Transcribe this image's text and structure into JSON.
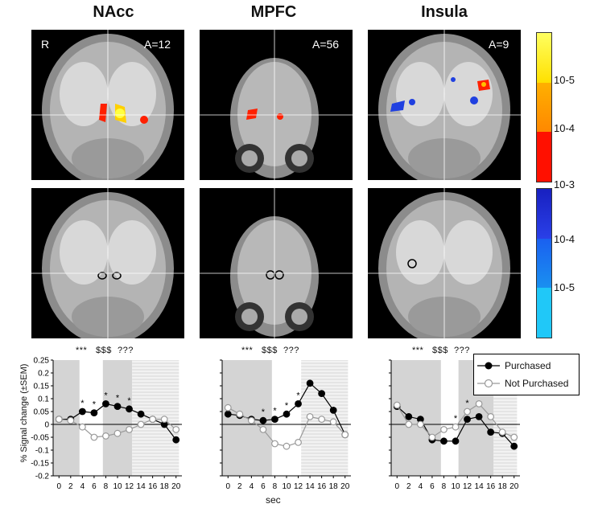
{
  "columns": [
    {
      "title": "NAcc",
      "a_label": "A=12",
      "side_label": "R"
    },
    {
      "title": "MPFC",
      "a_label": "A=56",
      "side_label": ""
    },
    {
      "title": "Insula",
      "a_label": "A=9",
      "side_label": ""
    }
  ],
  "colorbar_warm": {
    "labels": [
      "10-5",
      "10-4",
      "10-3"
    ],
    "colors": [
      "#ffff00",
      "#ff9900",
      "#ff0000"
    ]
  },
  "colorbar_cool": {
    "labels": [
      "10-3",
      "10-4",
      "10-5"
    ],
    "colors": [
      "#1e2bd0",
      "#1a6cf0",
      "#18c0f5"
    ]
  },
  "significance_labels": [
    "***",
    "$$$",
    "???"
  ],
  "ylabel": "% Signal change (±SEM)",
  "xlabel": "sec",
  "legend": {
    "purchased": "Purchased",
    "not_purchased": "Not Purchased"
  },
  "chart_data": [
    {
      "type": "line",
      "title": "NAcc",
      "x": [
        0,
        2,
        4,
        6,
        8,
        10,
        12,
        14,
        16,
        18,
        20
      ],
      "ylim": [
        -0.2,
        0.25
      ],
      "yticks": [
        -0.2,
        -0.15,
        -0.1,
        -0.05,
        0,
        0.05,
        0.1,
        0.15,
        0.2,
        0.25
      ],
      "shaded_ranges": [
        [
          0,
          3.5
        ],
        [
          8.5,
          12.5
        ]
      ],
      "striped_range": [
        12.5,
        20.5
      ],
      "series": [
        {
          "name": "Purchased",
          "values": [
            0.02,
            0.02,
            0.05,
            0.045,
            0.08,
            0.07,
            0.06,
            0.04,
            0.02,
            0.0,
            -0.06
          ]
        },
        {
          "name": "Not Purchased",
          "values": [
            0.02,
            0.015,
            -0.01,
            -0.05,
            -0.045,
            -0.035,
            -0.02,
            0.0,
            0.02,
            0.02,
            -0.02
          ]
        }
      ],
      "stars_x": [
        4,
        6,
        8,
        10,
        12
      ]
    },
    {
      "type": "line",
      "title": "MPFC",
      "x": [
        0,
        2,
        4,
        6,
        8,
        10,
        12,
        14,
        16,
        18,
        20
      ],
      "ylim": [
        -0.2,
        0.25
      ],
      "yticks": [
        -0.2,
        -0.15,
        -0.1,
        -0.05,
        0,
        0.05,
        0.1,
        0.15,
        0.2,
        0.25
      ],
      "shaded_ranges": [
        [
          0,
          7.5
        ]
      ],
      "striped_range": [
        12.5,
        20.5
      ],
      "series": [
        {
          "name": "Purchased",
          "values": [
            0.04,
            0.035,
            0.02,
            0.015,
            0.02,
            0.04,
            0.08,
            0.16,
            0.12,
            0.055,
            -0.04
          ]
        },
        {
          "name": "Not Purchased",
          "values": [
            0.065,
            0.04,
            0.015,
            -0.02,
            -0.075,
            -0.085,
            -0.07,
            0.03,
            0.02,
            0.01,
            -0.04
          ]
        }
      ],
      "stars_x": [
        6,
        8,
        10,
        12
      ]
    },
    {
      "type": "line",
      "title": "Insula",
      "x": [
        0,
        2,
        4,
        6,
        8,
        10,
        12,
        14,
        16,
        18,
        20
      ],
      "ylim": [
        -0.2,
        0.25
      ],
      "yticks": [
        -0.2,
        -0.15,
        -0.1,
        -0.05,
        0,
        0.05,
        0.1,
        0.15,
        0.2,
        0.25
      ],
      "shaded_ranges": [
        [
          0,
          7.5
        ],
        [
          11.5,
          16.5
        ]
      ],
      "striped_range": [
        16.5,
        20.5
      ],
      "series": [
        {
          "name": "Purchased",
          "values": [
            0.07,
            0.03,
            0.02,
            -0.06,
            -0.065,
            -0.065,
            0.02,
            0.03,
            -0.03,
            -0.035,
            -0.085
          ]
        },
        {
          "name": "Not Purchased",
          "values": [
            0.075,
            0.0,
            0.0,
            -0.05,
            -0.02,
            -0.01,
            0.05,
            0.08,
            0.03,
            -0.03,
            -0.05
          ]
        }
      ],
      "stars_x": [
        10,
        12,
        14
      ]
    }
  ]
}
